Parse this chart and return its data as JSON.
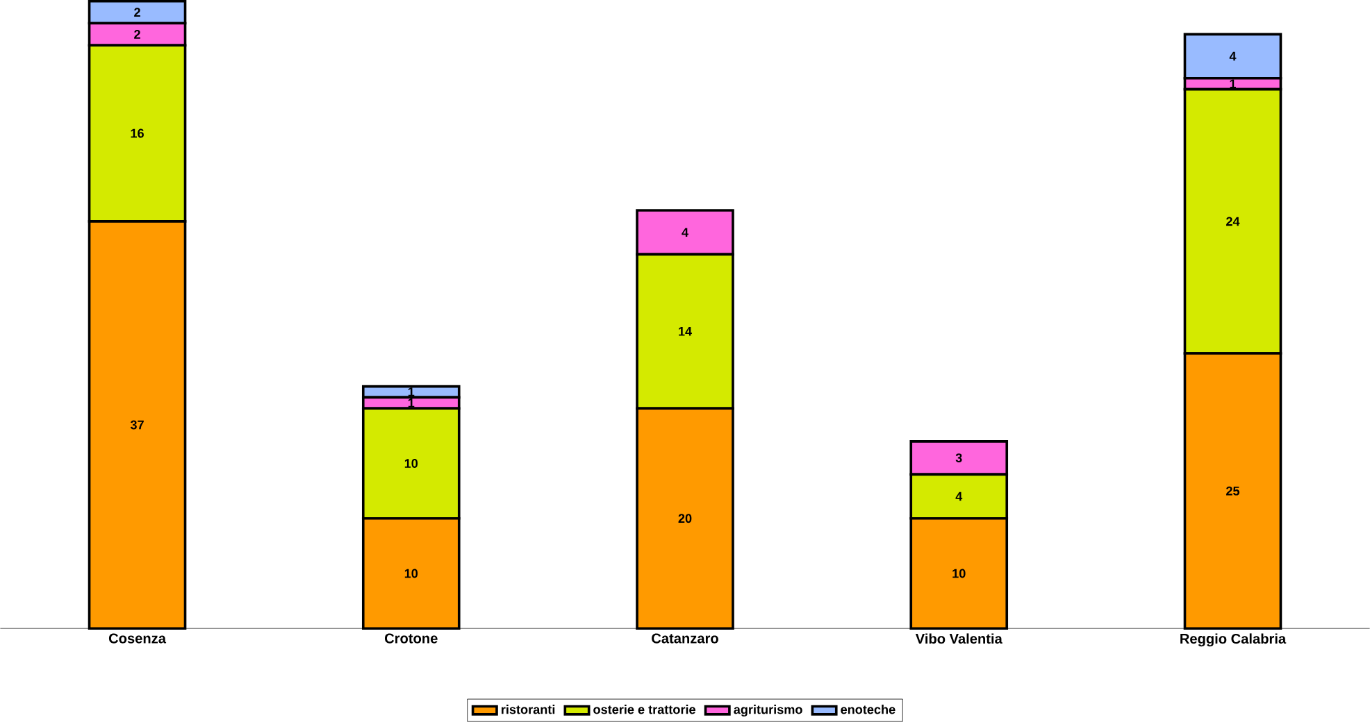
{
  "chart_data": {
    "type": "bar",
    "stacked": true,
    "data_labels": true,
    "legend": "bottom",
    "categories": [
      "Cosenza",
      "Crotone",
      "Catanzaro",
      "Vibo Valentia",
      "Reggio Calabria"
    ],
    "series": [
      {
        "name": "ristoranti",
        "color": "#ff9a00",
        "values": [
          37,
          10,
          20,
          10,
          25
        ]
      },
      {
        "name": "osterie e trattorie",
        "color": "#d4ea00",
        "values": [
          16,
          10,
          14,
          4,
          24
        ]
      },
      {
        "name": "agriturismo",
        "color": "#ff66dd",
        "values": [
          2,
          1,
          4,
          3,
          1
        ]
      },
      {
        "name": "enoteche",
        "color": "#99bbff",
        "values": [
          2,
          1,
          null,
          null,
          4
        ]
      }
    ]
  }
}
